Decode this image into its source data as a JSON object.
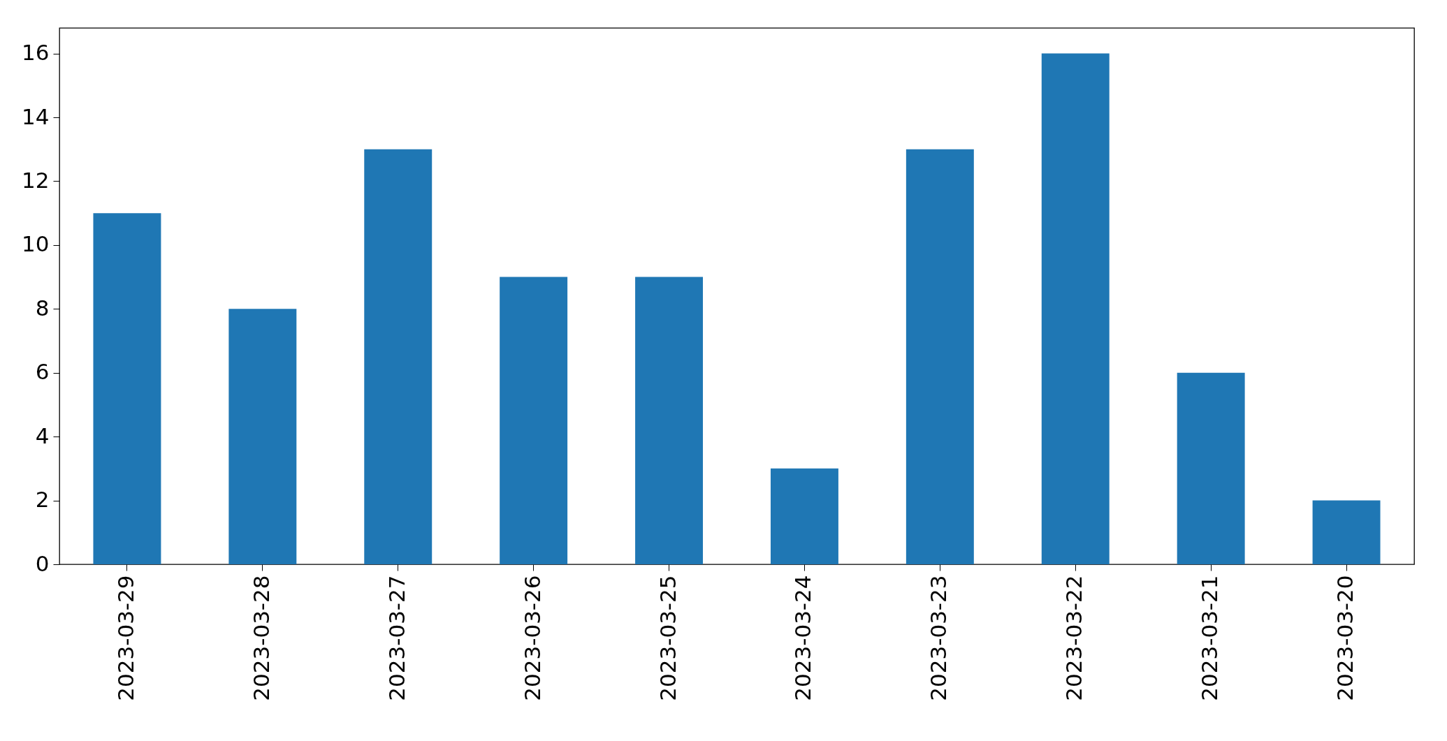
{
  "chart_data": {
    "type": "bar",
    "categories": [
      "2023-03-29",
      "2023-03-28",
      "2023-03-27",
      "2023-03-26",
      "2023-03-25",
      "2023-03-24",
      "2023-03-23",
      "2023-03-22",
      "2023-03-21",
      "2023-03-20"
    ],
    "values": [
      11,
      8,
      13,
      9,
      9,
      3,
      13,
      16,
      6,
      2
    ],
    "color": "#1f77b4",
    "ylim": [
      0,
      16.8
    ],
    "yticks": [
      0,
      2,
      4,
      6,
      8,
      10,
      12,
      14,
      16
    ],
    "grid": false
  }
}
